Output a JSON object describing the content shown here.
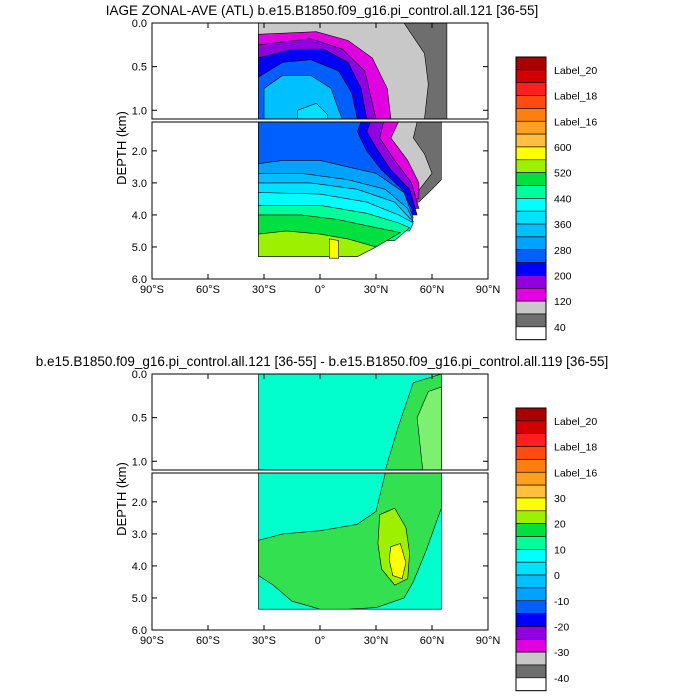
{
  "chart_data": [
    {
      "type": "heatmap",
      "title": "IAGE ZONAL-AVE (ATL) b.e15.B1850.f09_g16.pi_control.all.121 [36-55]",
      "ylabel": "DEPTH (km)",
      "xlabel": "",
      "x_ticks": [
        "90°S",
        "60°S",
        "30°S",
        "0°",
        "30°N",
        "60°N",
        "90°N"
      ],
      "y_ticks_upper": [
        "0.0",
        "0.5",
        "1.0"
      ],
      "y_ticks_lower": [
        "2.0",
        "3.0",
        "4.0",
        "5.0",
        "6.0"
      ],
      "xlim": [
        -90,
        90
      ],
      "ylim_upper": [
        0,
        1.1
      ],
      "ylim_lower": [
        1.1,
        6.0
      ],
      "colorbar": {
        "labels": [
          "Label_20",
          "Label_18",
          "Label_16",
          "600",
          "520",
          "440",
          "360",
          "280",
          "200",
          "120",
          "40"
        ],
        "colors": [
          "#a80000",
          "#d40000",
          "#ff1f1f",
          "#ff4a10",
          "#ff7e10",
          "#ffa020",
          "#ffc040",
          "#ffff00",
          "#9cf000",
          "#00e040",
          "#00ff9a",
          "#00ffff",
          "#00e0ff",
          "#00c0ff",
          "#00a2ff",
          "#0060ff",
          "#0000ff",
          "#9000e0",
          "#e000e0",
          "#c8c8c8",
          "#6e6e6e",
          "#ffffff"
        ]
      },
      "regions": [
        {
          "name": "gray-dark",
          "value": "<40",
          "approx_extent": "30°S–70°N, 0–1.0 km (shallow) and 50°N–65°N at depth"
        },
        {
          "name": "gray-light",
          "value": "40–80",
          "approx_extent": "45°N–60°N, 0–3.5 km"
        },
        {
          "name": "magenta",
          "value": "80–120",
          "approx_extent": "30°S–50°N, 0–1.0 km"
        },
        {
          "name": "purple",
          "value": "120–160"
        },
        {
          "name": "blue",
          "value": "160–240"
        },
        {
          "name": "cyan",
          "value": "280–400",
          "approx_extent": "30°S–40°N, 0.5–3.5 km"
        },
        {
          "name": "green",
          "value": "440–520",
          "approx_extent": "30°S–45°N, 4.0–5.3 km"
        },
        {
          "name": "yellow",
          "value": "520–600",
          "approx_extent": "5°N–10°N, 4.7–5.3 km"
        }
      ]
    },
    {
      "type": "heatmap",
      "title": "b.e15.B1850.f09_g16.pi_control.all.121 [36-55] - b.e15.B1850.f09_g16.pi_control.all.119 [36-55]",
      "ylabel": "DEPTH (km)",
      "xlabel": "",
      "x_ticks": [
        "90°S",
        "60°S",
        "30°S",
        "0°",
        "30°N",
        "60°N",
        "90°N"
      ],
      "y_ticks_upper": [
        "0.0",
        "0.5",
        "1.0"
      ],
      "y_ticks_lower": [
        "2.0",
        "3.0",
        "4.0",
        "5.0",
        "6.0"
      ],
      "xlim": [
        -90,
        90
      ],
      "ylim_upper": [
        0,
        1.1
      ],
      "ylim_lower": [
        1.1,
        6.0
      ],
      "colorbar": {
        "labels": [
          "Label_20",
          "Label_18",
          "Label_16",
          "30",
          "20",
          "10",
          "0",
          "-10",
          "-20",
          "-30",
          "-40"
        ],
        "colors": [
          "#a80000",
          "#d40000",
          "#ff1f1f",
          "#ff4a10",
          "#ff7e10",
          "#ffa020",
          "#ffc040",
          "#ffff00",
          "#9cf000",
          "#00e040",
          "#00ff9a",
          "#00ffff",
          "#00e0ff",
          "#00c0ff",
          "#00a2ff",
          "#0060ff",
          "#0000ff",
          "#9000e0",
          "#e000e0",
          "#c8c8c8",
          "#6e6e6e",
          "#ffffff"
        ]
      },
      "regions": [
        {
          "name": "aqua",
          "value": "0–5",
          "approx_extent": "30°S–65°N, 0–5.3 km"
        },
        {
          "name": "green",
          "value": "5–15",
          "approx_extent": "30°N–65°N shallow; 30°S–50°N at 2.5–5.3 km"
        },
        {
          "name": "yellow-green",
          "value": "15–20",
          "approx_extent": "35°N–45°N, 3.0–4.5 km"
        },
        {
          "name": "yellow",
          "value": "20–25",
          "approx_extent": "38°N–42°N, 3.5–4.2 km"
        }
      ]
    }
  ]
}
